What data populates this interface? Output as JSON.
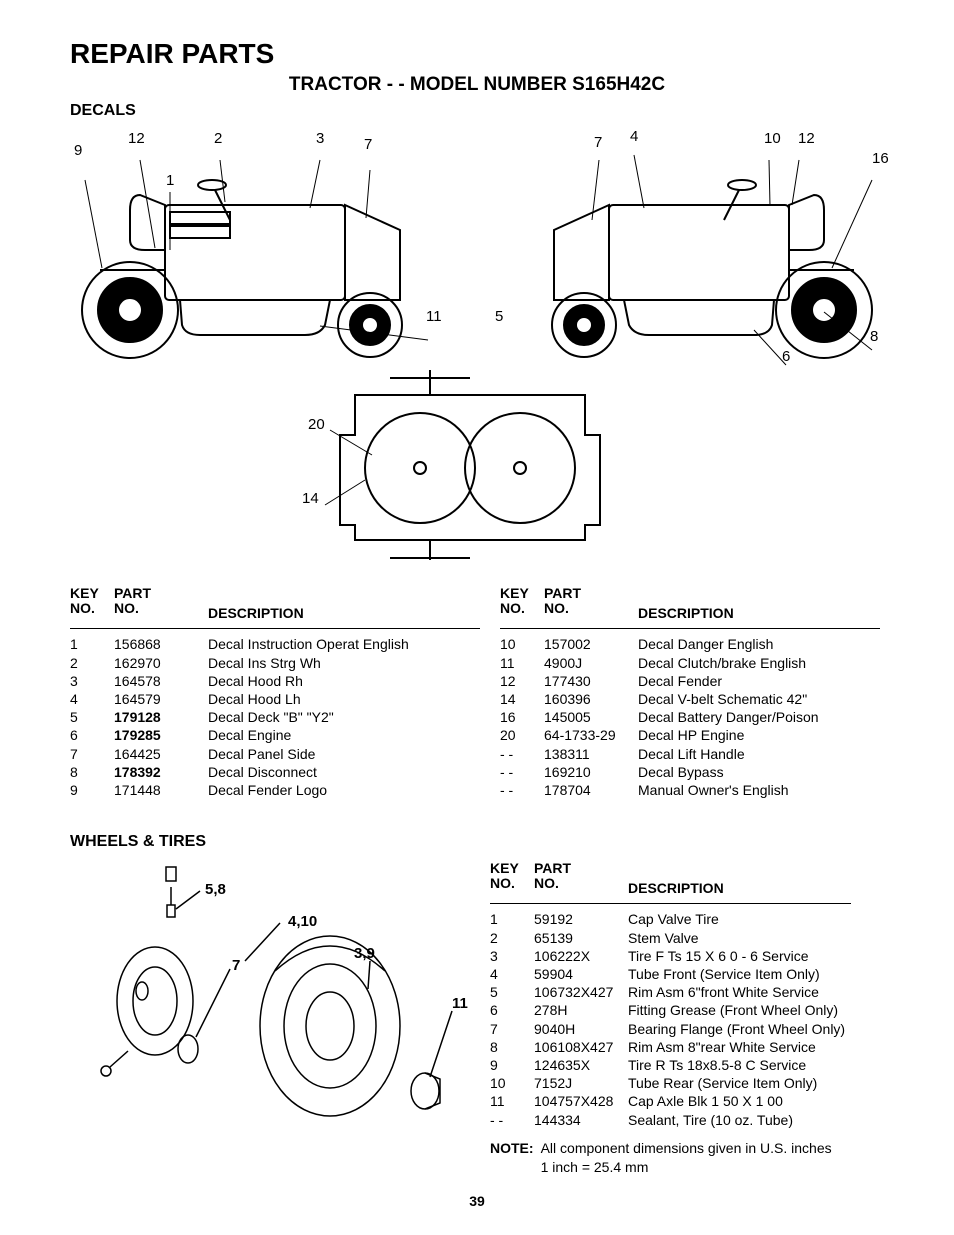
{
  "page": {
    "main_title": "REPAIR PARTS",
    "subtitle": "TRACTOR - - MODEL NUMBER S165H42C",
    "page_number": "39"
  },
  "decals": {
    "section_title": "DECALS",
    "headers": {
      "key1": "KEY",
      "key2": "NO.",
      "part1": "PART",
      "part2": "NO.",
      "desc": "DESCRIPTION"
    },
    "left_rows": [
      {
        "key": "1",
        "part": "156868",
        "desc": "Decal Instruction Operat English",
        "bold": false
      },
      {
        "key": "2",
        "part": "162970",
        "desc": "Decal Ins Strg Wh",
        "bold": false
      },
      {
        "key": "3",
        "part": "164578",
        "desc": "Decal Hood Rh",
        "bold": false
      },
      {
        "key": "4",
        "part": "164579",
        "desc": "Decal Hood Lh",
        "bold": false
      },
      {
        "key": "5",
        "part": "179128",
        "desc": "Decal Deck \"B\" \"Y2\"",
        "bold": true
      },
      {
        "key": "6",
        "part": "179285",
        "desc": "Decal Engine",
        "bold": true
      },
      {
        "key": "7",
        "part": "164425",
        "desc": "Decal Panel Side",
        "bold": false
      },
      {
        "key": "8",
        "part": "178392",
        "desc": "Decal Disconnect",
        "bold": true
      },
      {
        "key": "9",
        "part": "171448",
        "desc": "Decal Fender Logo",
        "bold": false
      }
    ],
    "right_rows": [
      {
        "key": "10",
        "part": "157002",
        "desc": "Decal Danger English",
        "bold": false
      },
      {
        "key": "11",
        "part": "4900J",
        "desc": "Decal Clutch/brake English",
        "bold": false
      },
      {
        "key": "12",
        "part": "177430",
        "desc": "Decal Fender",
        "bold": false
      },
      {
        "key": "14",
        "part": "160396",
        "desc": "Decal V-belt Schematic 42\"",
        "bold": false
      },
      {
        "key": "16",
        "part": "145005",
        "desc": "Decal Battery Danger/Poison",
        "bold": false
      },
      {
        "key": "20",
        "part": "64-1733-29",
        "desc": "Decal HP Engine",
        "bold": false
      },
      {
        "key": "- -",
        "part": "138311",
        "desc": "Decal Lift Handle",
        "bold": false
      },
      {
        "key": "- -",
        "part": "169210",
        "desc": "Decal Bypass",
        "bold": false
      },
      {
        "key": "- -",
        "part": "178704",
        "desc": "Manual Owner's English",
        "bold": false
      }
    ],
    "callouts_left": {
      "c9": "9",
      "c12": "12",
      "c1": "1",
      "c2": "2",
      "c3": "3",
      "c7": "7",
      "c11": "11",
      "c5": "5"
    },
    "callouts_right": {
      "c7": "7",
      "c4": "4",
      "c10": "10",
      "c12": "12",
      "c16": "16",
      "c8": "8",
      "c6": "6"
    },
    "callouts_deck": {
      "c20": "20",
      "c14": "14"
    }
  },
  "wheels": {
    "section_title": "WHEELS & TIRES",
    "headers": {
      "key1": "KEY",
      "key2": "NO.",
      "part1": "PART",
      "part2": "NO.",
      "desc": "DESCRIPTION"
    },
    "rows": [
      {
        "key": "1",
        "part": "59192",
        "desc": "Cap Valve Tire"
      },
      {
        "key": "2",
        "part": "65139",
        "desc": "Stem Valve"
      },
      {
        "key": "3",
        "part": "106222X",
        "desc": "Tire F Ts 15 X 6 0 - 6 Service"
      },
      {
        "key": "4",
        "part": "59904",
        "desc": "Tube  Front (Service Item Only)"
      },
      {
        "key": "5",
        "part": "106732X427",
        "desc": "Rim Asm 6\"front White Service"
      },
      {
        "key": "6",
        "part": "278H",
        "desc": "Fitting Grease (Front Wheel Only)"
      },
      {
        "key": "7",
        "part": "9040H",
        "desc": "Bearing Flange (Front Wheel Only)"
      },
      {
        "key": "8",
        "part": "106108X427",
        "desc": "Rim Asm 8\"rear White Service"
      },
      {
        "key": "9",
        "part": "124635X",
        "desc": "Tire R Ts 18x8.5-8 C Service"
      },
      {
        "key": "10",
        "part": "7152J",
        "desc": "Tube Rear (Service Item Only)"
      },
      {
        "key": "11",
        "part": "104757X428",
        "desc": "Cap Axle Blk 1 50 X 1 00"
      },
      {
        "key": "- -",
        "part": "144334",
        "desc": "Sealant, Tire (10 oz. Tube)"
      }
    ],
    "callouts": {
      "c58": "5,8",
      "c410": "4,10",
      "c7": "7",
      "c39": "3,9",
      "c11": "11"
    },
    "note_label": "NOTE:",
    "note_text1": "All component dimensions given in U.S. inches",
    "note_text2": "1 inch = 25.4 mm"
  }
}
